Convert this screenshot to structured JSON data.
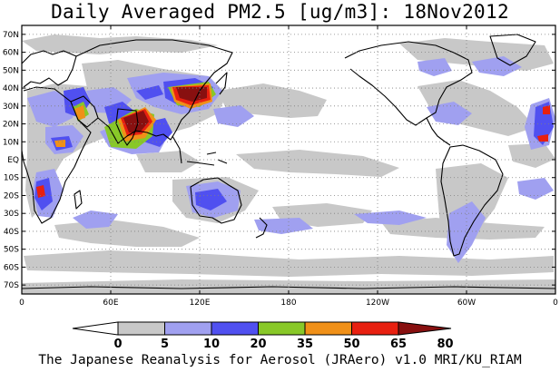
{
  "title": "Daily Averaged PM2.5 [ug/m3]: 18Nov2012",
  "credit": "The Japanese Reanalysis for Aerosol (JRAero) v1.0 MRI/KU_RIAM",
  "map": {
    "lon_range": [
      0,
      360
    ],
    "lat_range": [
      -75,
      75
    ],
    "grid": "dotted",
    "lat_ticks": [
      {
        "value": 70,
        "label": "70N"
      },
      {
        "value": 60,
        "label": "60N"
      },
      {
        "value": 50,
        "label": "50N"
      },
      {
        "value": 40,
        "label": "40N"
      },
      {
        "value": 30,
        "label": "30N"
      },
      {
        "value": 20,
        "label": "20N"
      },
      {
        "value": 10,
        "label": "10N"
      },
      {
        "value": 0,
        "label": "EQ"
      },
      {
        "value": -10,
        "label": "10S"
      },
      {
        "value": -20,
        "label": "20S"
      },
      {
        "value": -30,
        "label": "30S"
      },
      {
        "value": -40,
        "label": "40S"
      },
      {
        "value": -50,
        "label": "50S"
      },
      {
        "value": -60,
        "label": "60S"
      },
      {
        "value": -70,
        "label": "70S"
      }
    ],
    "lon_ticks": [
      {
        "value": 0,
        "label": "0"
      },
      {
        "value": 60,
        "label": "60E"
      },
      {
        "value": 120,
        "label": "120E"
      },
      {
        "value": 180,
        "label": "180"
      },
      {
        "value": 240,
        "label": "120W"
      },
      {
        "value": 300,
        "label": "60W"
      },
      {
        "value": 360,
        "label": "0"
      }
    ]
  },
  "colorbar": {
    "levels": [
      "0",
      "5",
      "10",
      "20",
      "35",
      "50",
      "65",
      "80"
    ],
    "colors": [
      "#ffffff",
      "#c8c8c8",
      "#a0a0f0",
      "#5050f0",
      "#88c828",
      "#f09018",
      "#e82010",
      "#881010"
    ]
  }
}
